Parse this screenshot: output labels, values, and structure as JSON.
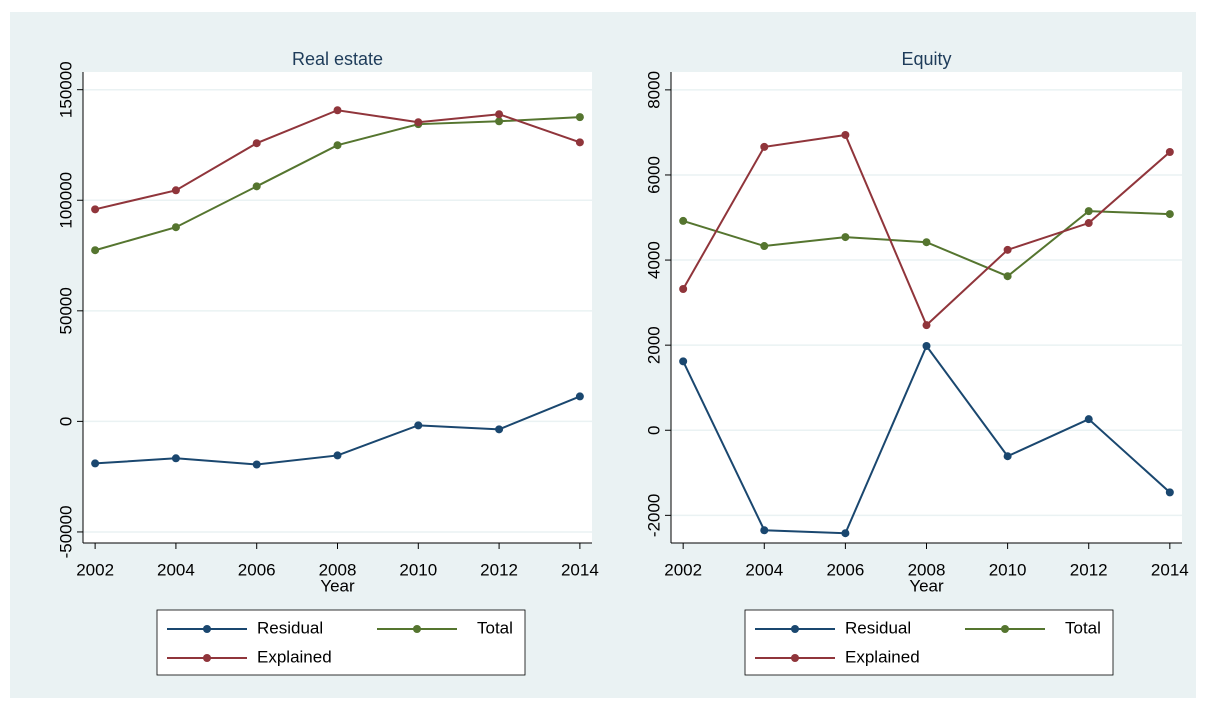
{
  "chart_data": [
    {
      "type": "line",
      "title": "Real estate",
      "x_label": "Year",
      "x": [
        2002,
        2004,
        2006,
        2008,
        2010,
        2012,
        2014
      ],
      "xlim": [
        2001.7,
        2014.3
      ],
      "xticks": [
        2002,
        2004,
        2006,
        2008,
        2010,
        2012,
        2014
      ],
      "ylim": [
        -55000,
        158000
      ],
      "yticks": [
        -50000,
        0,
        50000,
        100000,
        150000
      ],
      "grid": true,
      "series": [
        {
          "name": "Residual",
          "color": "#1a476f",
          "values": [
            -19000,
            -16700,
            -19500,
            -15400,
            -1800,
            -3600,
            11300
          ]
        },
        {
          "name": "Total",
          "color": "#55752f",
          "values": [
            77400,
            87800,
            106300,
            124900,
            134400,
            135700,
            137600
          ]
        },
        {
          "name": "Explained",
          "color": "#90353b",
          "values": [
            95900,
            104500,
            125800,
            140700,
            135300,
            138900,
            126200
          ]
        }
      ]
    },
    {
      "type": "line",
      "title": "Equity",
      "x_label": "Year",
      "x": [
        2002,
        2004,
        2006,
        2008,
        2010,
        2012,
        2014
      ],
      "xlim": [
        2001.7,
        2014.3
      ],
      "xticks": [
        2002,
        2004,
        2006,
        2008,
        2010,
        2012,
        2014
      ],
      "ylim": [
        -2650,
        8420
      ],
      "yticks": [
        -2000,
        0,
        2000,
        4000,
        6000,
        8000
      ],
      "grid": true,
      "series": [
        {
          "name": "Residual",
          "color": "#1a476f",
          "values": [
            1620,
            -2350,
            -2420,
            1980,
            -610,
            260,
            -1460
          ]
        },
        {
          "name": "Total",
          "color": "#55752f",
          "values": [
            4920,
            4330,
            4540,
            4420,
            3620,
            5150,
            5080
          ]
        },
        {
          "name": "Explained",
          "color": "#90353b",
          "values": [
            3320,
            6660,
            6940,
            2470,
            4240,
            4870,
            6540
          ]
        }
      ]
    }
  ]
}
